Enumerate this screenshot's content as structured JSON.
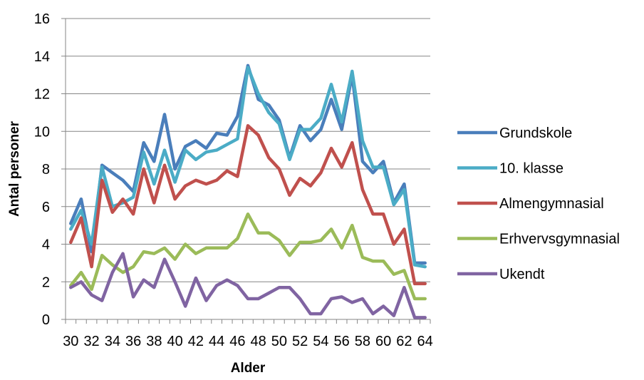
{
  "chart_data": {
    "type": "line",
    "xlabel": "Alder",
    "ylabel": "Antal personer",
    "ylim": [
      0,
      16
    ],
    "ytick_step": 2,
    "grid": "horizontal",
    "legend_position": "right",
    "x": [
      30,
      31,
      32,
      33,
      34,
      35,
      36,
      37,
      38,
      39,
      40,
      41,
      42,
      43,
      44,
      45,
      46,
      47,
      48,
      49,
      50,
      51,
      52,
      53,
      54,
      55,
      56,
      57,
      58,
      59,
      60,
      61,
      62,
      63,
      64
    ],
    "x_tick_labels": [
      "30",
      "32",
      "34",
      "36",
      "38",
      "40",
      "42",
      "44",
      "46",
      "48",
      "50",
      "52",
      "54",
      "56",
      "58",
      "60",
      "62",
      "64"
    ],
    "series": [
      {
        "name": "Grundskole",
        "color": "#4A7EBB",
        "values": [
          5.1,
          6.4,
          3.6,
          8.2,
          7.8,
          7.4,
          6.8,
          9.4,
          8.4,
          10.9,
          8.0,
          9.2,
          9.5,
          9.1,
          9.9,
          9.8,
          10.8,
          13.5,
          11.7,
          11.4,
          10.6,
          8.6,
          10.3,
          9.5,
          10.1,
          11.7,
          10.1,
          13.0,
          8.4,
          7.8,
          8.4,
          6.2,
          7.2,
          3.0,
          3.0
        ]
      },
      {
        "name": "10. klasse",
        "color": "#4BACC6",
        "values": [
          4.8,
          5.8,
          4.0,
          8.1,
          6.0,
          6.2,
          6.5,
          8.9,
          7.2,
          9.0,
          7.3,
          9.0,
          8.5,
          8.9,
          9.0,
          9.3,
          9.6,
          13.4,
          12.0,
          11.0,
          10.4,
          8.5,
          10.1,
          10.1,
          10.7,
          12.5,
          10.5,
          13.2,
          9.5,
          8.1,
          8.1,
          6.1,
          6.9,
          2.9,
          2.8
        ]
      },
      {
        "name": "Almengymnasial",
        "color": "#C0504D",
        "values": [
          4.1,
          5.4,
          2.8,
          7.4,
          5.7,
          6.4,
          5.6,
          8.0,
          6.2,
          8.2,
          6.4,
          7.1,
          7.4,
          7.2,
          7.4,
          7.9,
          7.6,
          10.3,
          9.8,
          8.6,
          8.0,
          6.6,
          7.5,
          7.1,
          7.8,
          9.1,
          8.1,
          9.4,
          6.9,
          5.6,
          5.6,
          4.0,
          4.8,
          1.9,
          1.9
        ]
      },
      {
        "name": "Erhvervsgymnasial",
        "color": "#9BBB59",
        "values": [
          1.8,
          2.5,
          1.6,
          3.4,
          2.9,
          2.5,
          2.8,
          3.6,
          3.5,
          3.8,
          3.2,
          4.0,
          3.5,
          3.8,
          3.8,
          3.8,
          4.3,
          5.6,
          4.6,
          4.6,
          4.2,
          3.4,
          4.1,
          4.1,
          4.2,
          4.8,
          3.8,
          5.0,
          3.3,
          3.1,
          3.1,
          2.4,
          2.6,
          1.1,
          1.1
        ]
      },
      {
        "name": "Ukendt",
        "color": "#8064A2",
        "values": [
          1.7,
          2.0,
          1.3,
          1.0,
          2.5,
          3.5,
          1.2,
          2.1,
          1.7,
          3.2,
          2.0,
          0.7,
          2.2,
          1.0,
          1.8,
          2.1,
          1.8,
          1.1,
          1.1,
          1.4,
          1.7,
          1.7,
          1.1,
          0.3,
          0.3,
          1.1,
          1.2,
          0.9,
          1.1,
          0.3,
          0.7,
          0.2,
          1.7,
          0.1,
          0.1
        ]
      }
    ]
  }
}
